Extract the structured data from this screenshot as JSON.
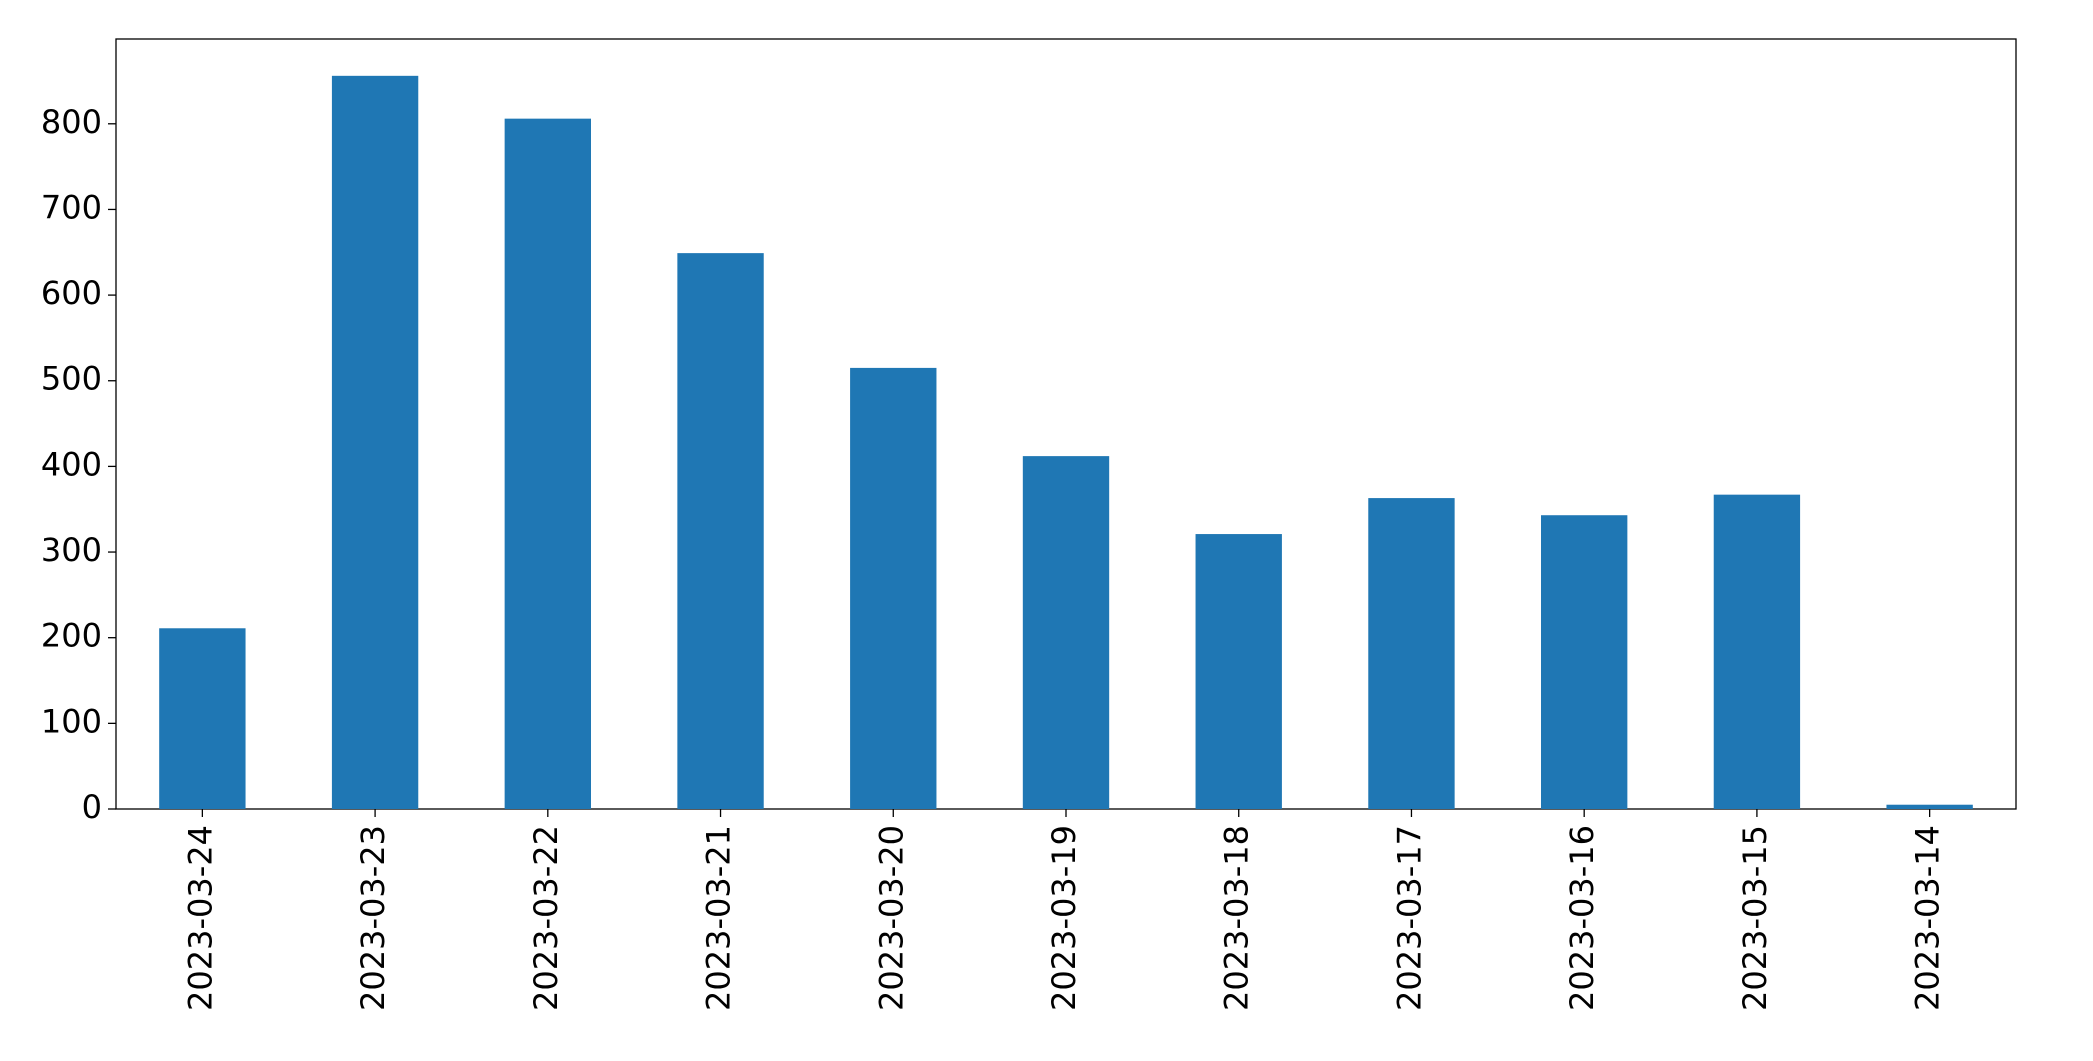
{
  "chart_data": {
    "type": "bar",
    "categories": [
      "2023-03-24",
      "2023-03-23",
      "2023-03-22",
      "2023-03-21",
      "2023-03-20",
      "2023-03-19",
      "2023-03-18",
      "2023-03-17",
      "2023-03-16",
      "2023-03-15",
      "2023-03-14"
    ],
    "values": [
      211,
      856,
      806,
      649,
      515,
      412,
      321,
      363,
      343,
      367,
      5
    ],
    "color": "#1f77b4",
    "ylim": [
      0,
      899
    ],
    "yticks": [
      0,
      100,
      200,
      300,
      400,
      500,
      600,
      700,
      800
    ],
    "grid": false
  }
}
